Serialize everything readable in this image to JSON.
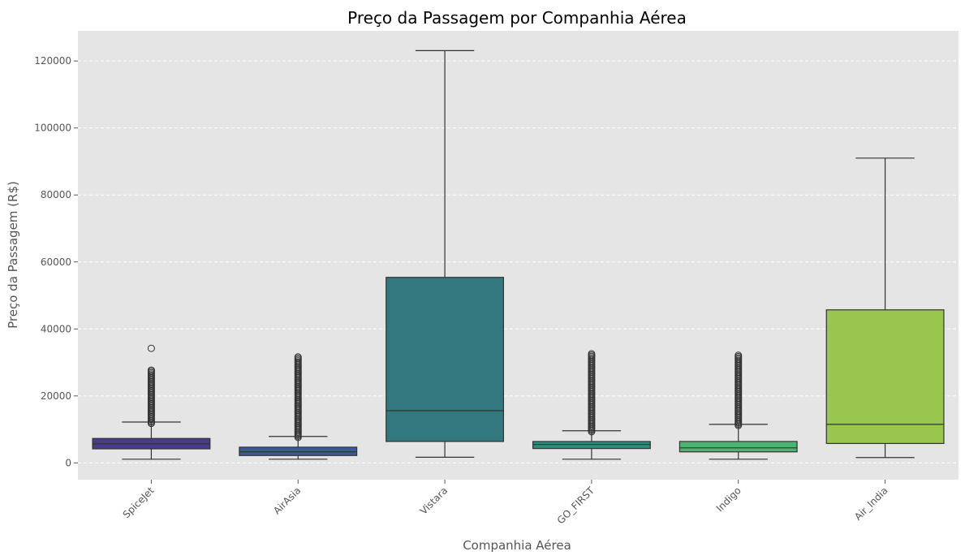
{
  "chart_data": {
    "type": "box",
    "title": "Preço da Passagem por Companhia Aérea",
    "xlabel": "Companhia Aérea",
    "ylabel": "Preço da Passagem (R$)",
    "ylim": [
      -5000,
      129000
    ],
    "yticks": [
      0,
      20000,
      40000,
      60000,
      80000,
      100000,
      120000
    ],
    "grid": true,
    "categories": [
      "SpiceJet",
      "AirAsia",
      "Vistara",
      "GO_FIRST",
      "Indigo",
      "Air_India"
    ],
    "boxes": [
      {
        "name": "SpiceJet",
        "color": "#483D8B",
        "whisker_low": 1100,
        "q1": 4200,
        "median": 5700,
        "q3": 7300,
        "whisker_high": 12200,
        "outlier_low": 11800,
        "outlier_high": 27800,
        "extra_outliers": [
          34200
        ]
      },
      {
        "name": "AirAsia",
        "color": "#3B5B92",
        "whisker_low": 1100,
        "q1": 2200,
        "median": 3300,
        "q3": 4700,
        "whisker_high": 7900,
        "outlier_low": 7600,
        "outlier_high": 31800,
        "extra_outliers": []
      },
      {
        "name": "Vistara",
        "color": "#33777F",
        "whisker_low": 1700,
        "q1": 6400,
        "median": 15600,
        "q3": 55400,
        "whisker_high": 123100,
        "outlier_low": null,
        "outlier_high": null,
        "extra_outliers": []
      },
      {
        "name": "GO_FIRST",
        "color": "#2A8F7D",
        "whisker_low": 1100,
        "q1": 4300,
        "median": 5500,
        "q3": 6400,
        "whisker_high": 9600,
        "outlier_low": 9300,
        "outlier_high": 32800,
        "extra_outliers": []
      },
      {
        "name": "Indigo",
        "color": "#4BB571",
        "whisker_low": 1100,
        "q1": 3300,
        "median": 4500,
        "q3": 6400,
        "whisker_high": 11500,
        "outlier_low": 11200,
        "outlier_high": 32200,
        "extra_outliers": []
      },
      {
        "name": "Air_India",
        "color": "#99C74D",
        "whisker_low": 1600,
        "q1": 5800,
        "median": 11500,
        "q3": 45700,
        "whisker_high": 91000,
        "outlier_low": null,
        "outlier_high": null,
        "extra_outliers": []
      }
    ],
    "colors": {
      "plot_background": "#E5E5E5",
      "grid": "#FFFFFF",
      "edge": "#333333"
    }
  }
}
